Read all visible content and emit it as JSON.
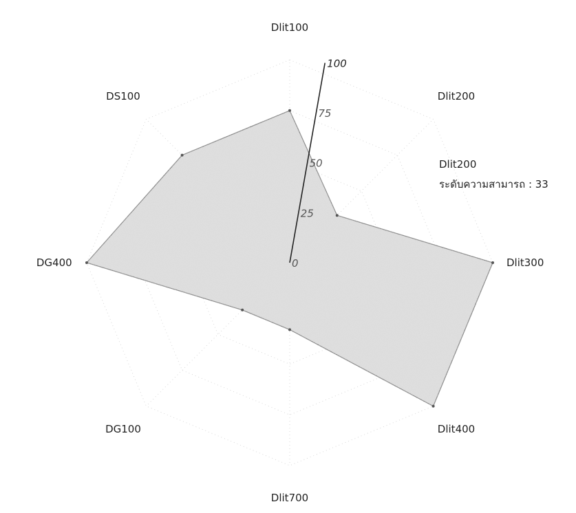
{
  "chart_data": {
    "type": "radar",
    "categories": [
      "Dlit100",
      "Dlit200",
      "Dlit300",
      "Dlit400",
      "Dlit700",
      "DG100",
      "DG400",
      "DS100"
    ],
    "values": [
      75,
      33,
      100,
      100,
      33,
      33,
      100,
      75
    ],
    "r_range": [
      0,
      100
    ],
    "r_ticks": [
      "0",
      "25",
      "50",
      "75",
      "100"
    ],
    "grid": true,
    "fill_color": "#d9d9d9",
    "line_color": "#555555"
  },
  "tooltip": {
    "category": "Dlit200",
    "value_text": "ระดับความสามารถ : 33"
  }
}
